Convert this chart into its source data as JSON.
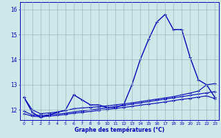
{
  "xlabel": "Graphe des températures (°C)",
  "background_color": "#cce8e8",
  "line_color": "#0000bb",
  "grid_color": "#99bbbb",
  "x": [
    0,
    1,
    2,
    3,
    4,
    5,
    6,
    7,
    8,
    9,
    10,
    11,
    12,
    13,
    14,
    15,
    16,
    17,
    18,
    19,
    20,
    21,
    22,
    23
  ],
  "main": [
    12.5,
    11.9,
    11.7,
    11.8,
    11.9,
    12.0,
    12.6,
    12.4,
    12.2,
    12.2,
    12.1,
    12.1,
    12.2,
    13.0,
    14.0,
    14.8,
    15.5,
    15.8,
    15.2,
    15.2,
    14.1,
    13.2,
    13.0,
    12.5
  ],
  "trend1": [
    12.5,
    12.0,
    11.85,
    11.88,
    11.92,
    11.97,
    12.05,
    12.08,
    12.1,
    12.13,
    12.16,
    12.2,
    12.24,
    12.28,
    12.33,
    12.38,
    12.43,
    12.48,
    12.53,
    12.6,
    12.67,
    12.75,
    13.0,
    13.05
  ],
  "trend2": [
    11.95,
    11.8,
    11.78,
    11.8,
    11.83,
    11.87,
    11.92,
    11.96,
    12.0,
    12.04,
    12.09,
    12.13,
    12.18,
    12.23,
    12.28,
    12.33,
    12.38,
    12.43,
    12.48,
    12.53,
    12.58,
    12.63,
    12.68,
    12.73
  ],
  "trend3": [
    11.85,
    11.75,
    11.73,
    11.75,
    11.78,
    11.82,
    11.87,
    11.9,
    11.94,
    11.98,
    12.02,
    12.06,
    12.1,
    12.14,
    12.19,
    12.23,
    12.27,
    12.32,
    12.37,
    12.42,
    12.46,
    12.51,
    12.56,
    12.45
  ],
  "ylim": [
    11.6,
    16.3
  ],
  "yticks": [
    12,
    13,
    14,
    15,
    16
  ],
  "xticks": [
    0,
    1,
    2,
    3,
    4,
    5,
    6,
    7,
    8,
    9,
    10,
    11,
    12,
    13,
    14,
    15,
    16,
    17,
    18,
    19,
    20,
    21,
    22,
    23
  ]
}
